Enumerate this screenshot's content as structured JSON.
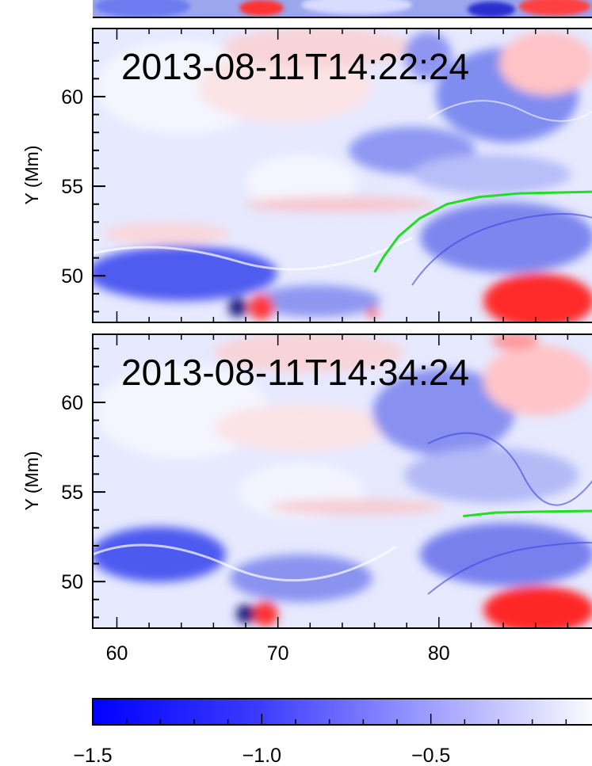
{
  "chart_data": {
    "type": "heatmap",
    "panels": [
      {
        "timestamp": "2013-08-11T14:22:24",
        "xlim": [
          58.5,
          90
        ],
        "ylim": [
          47.4,
          63.8
        ],
        "ylabel": "Y (Mm)",
        "yticks": [
          50,
          55,
          60
        ],
        "field_line": [
          [
            76.0,
            50.2
          ],
          [
            76.6,
            51.1
          ],
          [
            77.5,
            52.2
          ],
          [
            78.8,
            53.2
          ],
          [
            80.5,
            54.0
          ],
          [
            82.5,
            54.4
          ],
          [
            85.0,
            54.6
          ],
          [
            90.0,
            54.7
          ]
        ]
      },
      {
        "timestamp": "2013-08-11T14:34:24",
        "xlim": [
          58.5,
          90
        ],
        "ylim": [
          47.4,
          63.8
        ],
        "ylabel": "Y (Mm)",
        "yticks": [
          50,
          55,
          60
        ],
        "xticks": [
          60,
          70,
          80
        ],
        "field_line": [
          [
            81.5,
            53.65
          ],
          [
            83.5,
            53.85
          ],
          [
            86.0,
            53.9
          ],
          [
            90.0,
            53.95
          ]
        ]
      }
    ],
    "colorbar": {
      "range": [
        -1.5,
        0
      ],
      "ticks": [
        "−1.5",
        "−1.0",
        "−0.5"
      ],
      "tick_values": [
        -1.5,
        -1.0,
        -0.5
      ],
      "colors": {
        "negative": "#0000ff",
        "zero": "#ffffff",
        "positive": "#ff0000"
      }
    },
    "field_line_color": "#22dd22"
  }
}
